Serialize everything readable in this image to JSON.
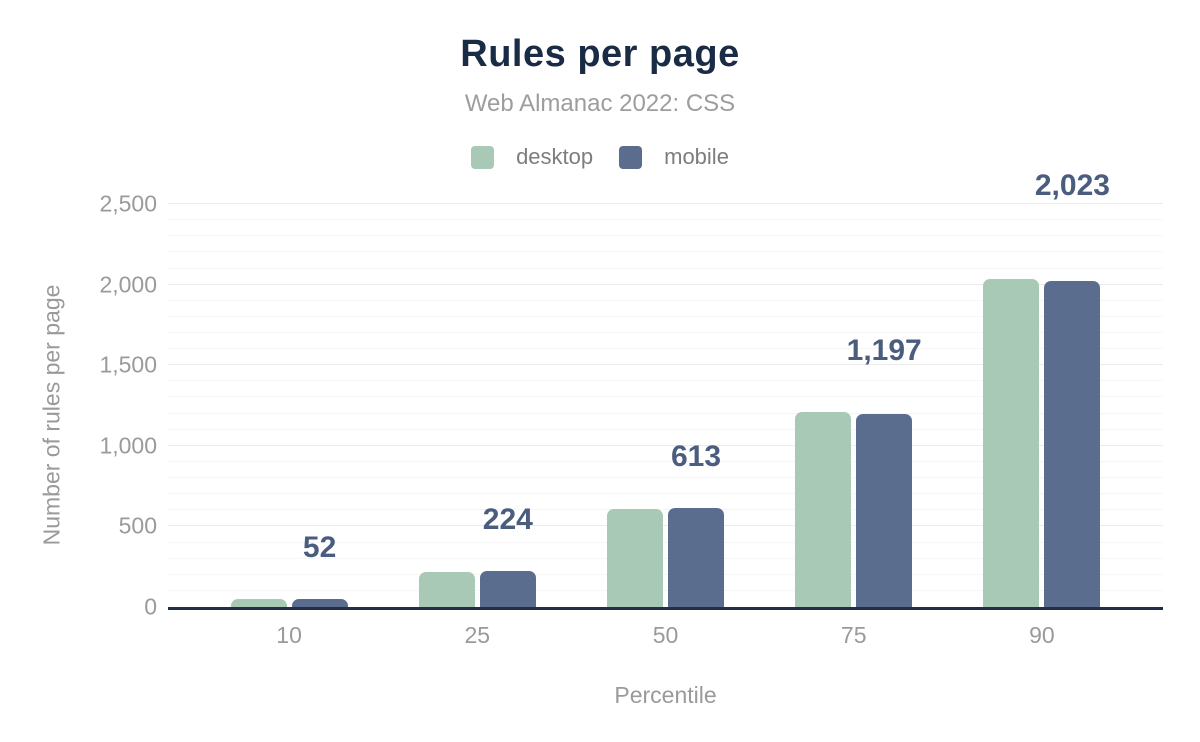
{
  "chart_data": {
    "type": "bar",
    "title": "Rules per page",
    "subtitle": "Web Almanac 2022: CSS",
    "xlabel": "Percentile",
    "ylabel": "Number of rules per page",
    "categories": [
      "10",
      "25",
      "50",
      "75",
      "90"
    ],
    "series": [
      {
        "name": "desktop",
        "color": "#a9c9b7",
        "values": [
          48,
          218,
          607,
          1211,
          2032
        ]
      },
      {
        "name": "mobile",
        "color": "#5b6d8e",
        "values": [
          52,
          224,
          613,
          1197,
          2023
        ]
      }
    ],
    "value_labels": [
      "52",
      "224",
      "613",
      "1,197",
      "2,023"
    ],
    "value_labels_series": "mobile",
    "y_ticks": [
      {
        "value": 0,
        "label": "0"
      },
      {
        "value": 500,
        "label": "500"
      },
      {
        "value": 1000,
        "label": "1,000"
      },
      {
        "value": 1500,
        "label": "1,500"
      },
      {
        "value": 2000,
        "label": "2,000"
      },
      {
        "value": 2500,
        "label": "2,500"
      }
    ],
    "ylim": [
      0,
      2500
    ],
    "grid": {
      "minor_step": 100,
      "major_step": 500,
      "on": true
    },
    "legend_position": "top",
    "colors": {
      "title": "#1a2b45",
      "subtitle": "#9d9d9d",
      "axis_line": "#202e4a",
      "tick_text": "#9a9a9a",
      "value_label_text": "#4b5d7e",
      "gridline_minor": "#f6f6f6",
      "gridline_major": "#ebebeb"
    }
  }
}
